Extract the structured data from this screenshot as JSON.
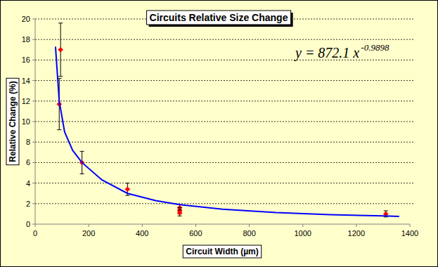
{
  "chart_data": {
    "type": "scatter",
    "title": "Circuits Relative Size Change",
    "x_label": "Circuit Width (µm)",
    "y_label": "Relative Change (%)",
    "xlim": [
      0,
      1400
    ],
    "xticks": [
      0,
      200,
      400,
      600,
      800,
      1000,
      1200,
      1400
    ],
    "ylim": [
      0,
      20
    ],
    "yticks": [
      0,
      2,
      4,
      6,
      8,
      10,
      12,
      14,
      16,
      18,
      20
    ],
    "grid": true,
    "series": [
      {
        "type": "scatter",
        "marker": "diamond",
        "color": "#ff0000",
        "x": [
          95,
          90,
          175,
          345,
          540,
          540,
          540,
          1310
        ],
        "values": [
          17.0,
          11.7,
          6.0,
          3.4,
          1.6,
          1.3,
          1.1,
          1.0
        ],
        "errors": [
          2.6,
          2.5,
          1.1,
          0.6,
          0.3,
          0.3,
          0.3,
          0.3
        ]
      },
      {
        "type": "line",
        "line_style": "solid",
        "color": "#0000ff",
        "x": [
          76,
          90,
          110,
          140,
          175,
          250,
          345,
          450,
          540,
          700,
          900,
          1100,
          1300,
          1360
        ],
        "values": [
          17.3,
          12.0,
          9.0,
          7.2,
          6.0,
          4.3,
          3.0,
          2.3,
          1.9,
          1.45,
          1.13,
          0.93,
          0.8,
          0.75
        ]
      }
    ],
    "annotations": [
      {
        "text": "y = 872.1 x",
        "superscript": "-0.9898"
      }
    ]
  }
}
